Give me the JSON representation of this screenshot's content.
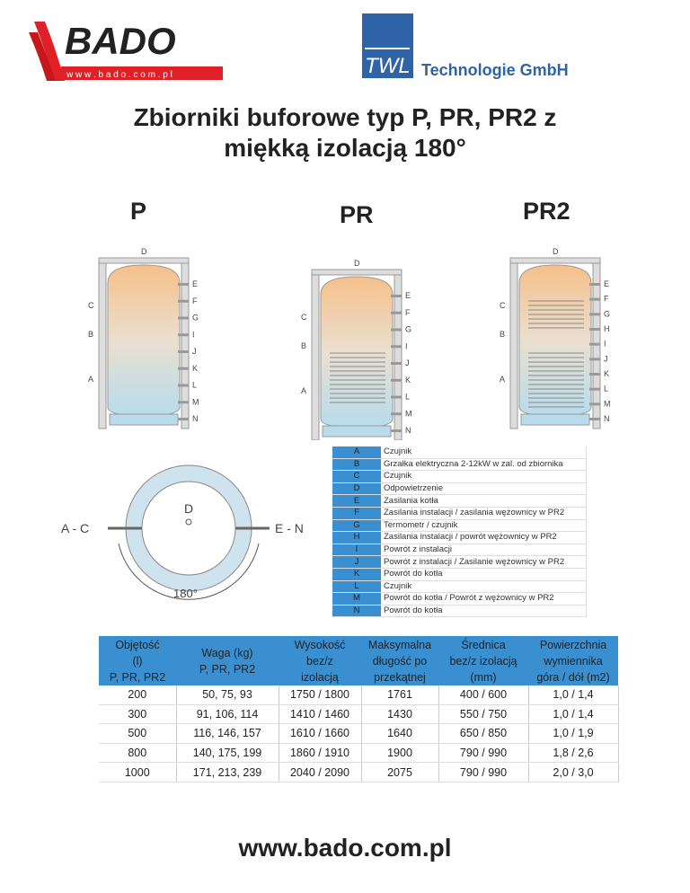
{
  "logos": {
    "bado": "BADO",
    "bado_url": "w w w . b a d o . c o m . p l",
    "twl": "TWL",
    "twl_company": "Technologie GmbH"
  },
  "title_line1": "Zbiorniki buforowe typ P, PR, PR2 z",
  "title_line2": "miękką izolacją 180°",
  "models": [
    "P",
    "PR",
    "PR2"
  ],
  "tank_labels": {
    "P": {
      "left": [
        "C",
        "B",
        "A"
      ],
      "right": [
        "E",
        "F",
        "G",
        "I",
        "J",
        "K",
        "L",
        "M",
        "N"
      ],
      "top": "D"
    },
    "PR": {
      "left": [
        "C",
        "B",
        "A"
      ],
      "right": [
        "E",
        "F",
        "G",
        "I",
        "J",
        "K",
        "L",
        "M",
        "N"
      ],
      "top": "D"
    },
    "PR2": {
      "left": [
        "C",
        "B",
        "A"
      ],
      "right": [
        "E",
        "F",
        "G",
        "H",
        "I",
        "J",
        "K",
        "L",
        "M",
        "N"
      ],
      "top": "D"
    }
  },
  "plan_view": {
    "left": "A - C",
    "right": "E - N",
    "center": "D",
    "angle": "180°"
  },
  "legend": [
    {
      "k": "A",
      "v": "Czujnik"
    },
    {
      "k": "B",
      "v": "Grzałka elektryczna 2-12kW w zal. od zbiornika"
    },
    {
      "k": "C",
      "v": "Czujnik"
    },
    {
      "k": "D",
      "v": "Odpowietrzenie"
    },
    {
      "k": "E",
      "v": "Zasilania kotła"
    },
    {
      "k": "F",
      "v": "Zasilania instalacji / zasilania wężownicy w PR2"
    },
    {
      "k": "G",
      "v": "Termometr / czujnik"
    },
    {
      "k": "H",
      "v": "Zasilania instalacji / powrót wężownicy w PR2"
    },
    {
      "k": "I",
      "v": "Powrót z instalacji"
    },
    {
      "k": "J",
      "v": "Powrót z instalacji / Zasilanie wężownicy w PR2"
    },
    {
      "k": "K",
      "v": "Powrót do kotła"
    },
    {
      "k": "L",
      "v": "Czujnik"
    },
    {
      "k": "M",
      "v": "Powrót do kotła / Powrót z wężownicy w PR2"
    },
    {
      "k": "N",
      "v": "Powrót do kotła"
    }
  ],
  "specs": {
    "headers": [
      "Objętość\n(l)\nP, PR, PR2",
      "Waga (kg)\nP, PR, PR2",
      "Wysokość\nbez/z\nizolacją",
      "Maksymalna\ndługość po\nprzekątnej",
      "Średnica\nbez/z izolacją\n(mm)",
      "Powierzchnia\nwymiennika\ngóra / dół (m2)"
    ],
    "rows": [
      [
        "200",
        "50, 75, 93",
        "1750 / 1800",
        "1761",
        "400 / 600",
        "1,0 / 1,4"
      ],
      [
        "300",
        "91, 106, 114",
        "1410 / 1460",
        "1430",
        "550 / 750",
        "1,0 / 1,4"
      ],
      [
        "500",
        "116, 146, 157",
        "1610 / 1660",
        "1640",
        "650 / 850",
        "1,0 / 1,9"
      ],
      [
        "800",
        "140, 175, 199",
        "1860 / 1910",
        "1900",
        "790 / 990",
        "1,8 / 2,6"
      ],
      [
        "1000",
        "171, 213, 239",
        "2040 / 2090",
        "2075",
        "790 / 990",
        "2,0 / 3,0"
      ]
    ]
  },
  "footer": "www.bado.com.pl",
  "colors": {
    "header_blue": "#3a8fd0",
    "bado_red": "#e02027",
    "twl_blue": "#2e63a8"
  }
}
